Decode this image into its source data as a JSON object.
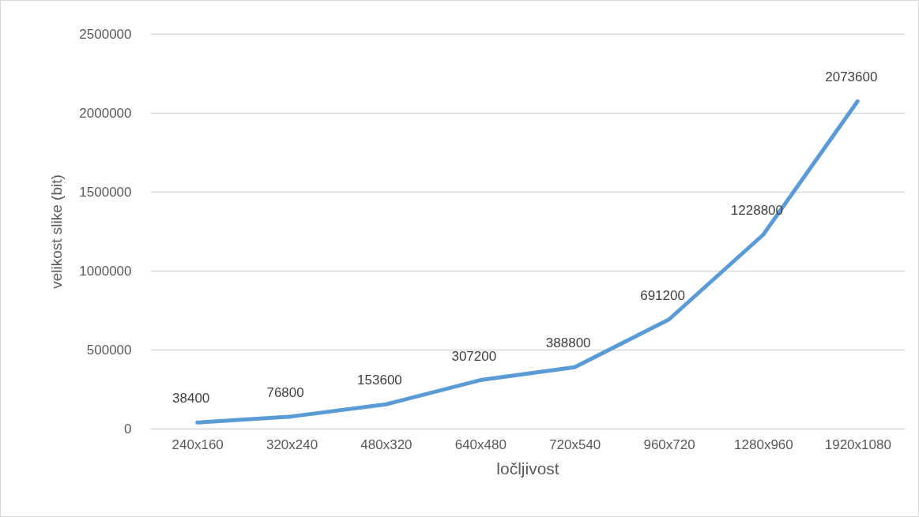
{
  "chart_data": {
    "type": "line",
    "xlabel": "ločljivost",
    "ylabel": "velikost slike (bit)",
    "categories": [
      "240x160",
      "320x240",
      "480x320",
      "640x480",
      "720x540",
      "960x720",
      "1280x960",
      "1920x1080"
    ],
    "series": [
      {
        "color": "#5b9bd5",
        "values": [
          38400,
          76800,
          153600,
          307200,
          388800,
          691200,
          1228800,
          2073600
        ]
      }
    ],
    "ylim": [
      0,
      2500000
    ],
    "yticks": [
      0,
      500000,
      1000000,
      1500000,
      2000000,
      2500000
    ],
    "grid": "y",
    "data_labels": true,
    "marker": "none",
    "line_style": "solid",
    "legend": false
  }
}
